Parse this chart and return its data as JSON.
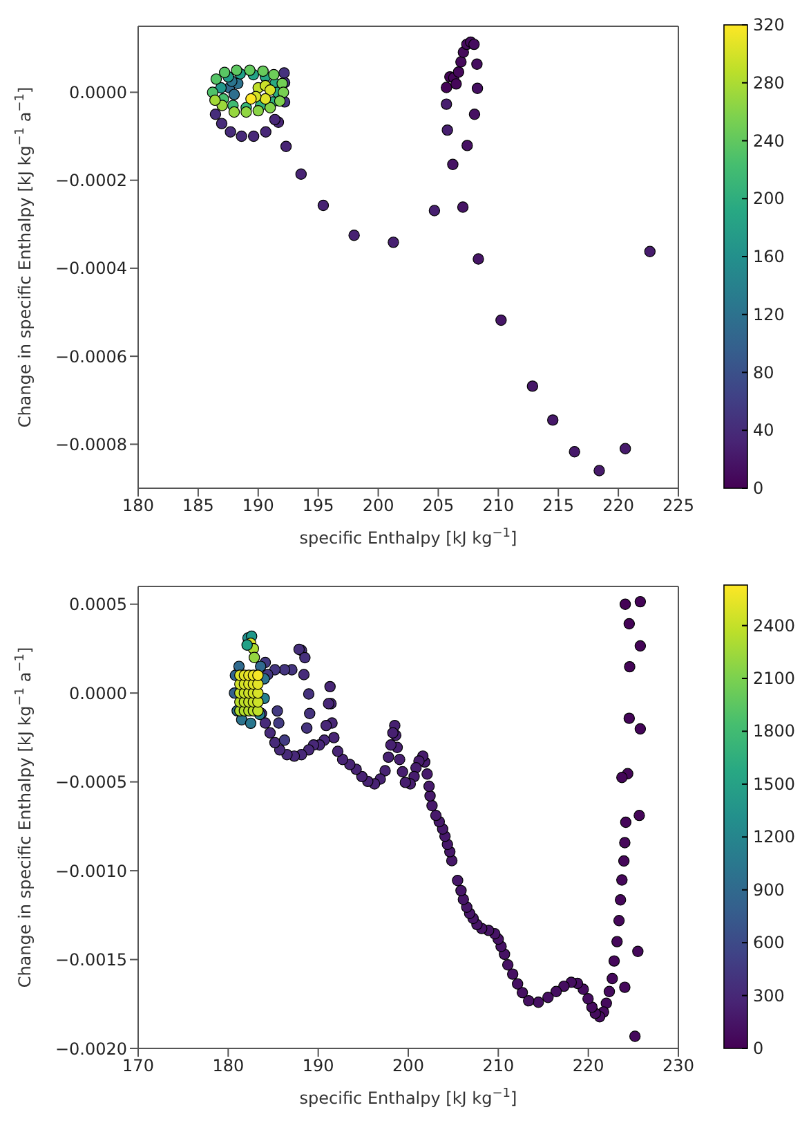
{
  "chart_data": [
    {
      "type": "scatter",
      "xlabel": "specific Enthalpy [kJ kg$^{−1}$]",
      "ylabel": "Change in specific Enthalpy [kJ kg$^{−1}$ a$^{−1}$]",
      "xlim": [
        180,
        225
      ],
      "xticks": [
        180,
        185,
        190,
        195,
        200,
        205,
        210,
        215,
        220,
        225
      ],
      "ylim": [
        -0.0009,
        0.00015
      ],
      "yticks": [
        {
          "value": -0.0008,
          "label": "−0.0008"
        },
        {
          "value": -0.0006,
          "label": "−0.0006"
        },
        {
          "value": -0.0004,
          "label": "−0.0004"
        },
        {
          "value": -0.0002,
          "label": "−0.0002"
        },
        {
          "value": 0,
          "label": "0.0000"
        }
      ],
      "clim": [
        0,
        320
      ],
      "cticks": [
        0,
        40,
        80,
        120,
        160,
        200,
        240,
        280,
        320
      ],
      "marker": "circle",
      "series": [
        {
          "x": [
            205.68,
            205.97,
            206.29,
            206.49,
            206.69,
            206.89,
            207.09,
            207.38,
            207.7,
            207.98,
            208.22,
            208.26,
            208.02,
            207.41,
            206.21,
            207.05,
            208.34,
            210.23,
            212.85,
            214.54,
            216.35,
            218.41,
            220.58,
            222.63,
            205.68,
            205.76,
            204.68,
            201.26,
            197.99,
            195.42,
            193.57,
            192.32,
            191.68,
            191.39,
            190.63,
            189.62,
            188.61,
            187.69,
            186.96,
            186.44,
            192.2,
            192.16,
            192.2,
            187.6,
            188.0,
            188.3,
            187.8,
            186.9,
            187.5,
            188.5,
            189.6,
            190.6,
            191.4,
            191.6,
            191.2,
            190.2,
            189.0,
            187.9,
            187.1,
            186.2,
            186.5,
            187.2,
            188.2,
            189.3,
            190.4,
            191.3,
            192.0,
            192.1,
            191.8,
            191.0,
            190.0,
            189.0,
            188.0,
            187.0,
            186.4,
            190.0,
            190.6,
            191.0,
            190.6,
            189.8,
            189.4
          ],
          "values": [
            1.1e-05,
            3.5e-05,
            3.3e-05,
            1.9e-05,
            4.6e-05,
            6.9e-05,
            9.1e-05,
            0.000109,
            0.000114,
            0.000109,
            6.4e-05,
            9e-06,
            -5e-05,
            -0.000121,
            -0.000164,
            -0.000261,
            -0.000379,
            -0.000518,
            -0.000668,
            -0.000745,
            -0.000817,
            -0.00086,
            -0.00081,
            -0.000362,
            -2.7e-05,
            -8.6e-05,
            -0.000269,
            -0.000341,
            -0.000325,
            -0.000257,
            -0.000186,
            -0.000123,
            -6.8e-05,
            -6.2e-05,
            -9e-05,
            -0.0001,
            -0.0001,
            -9e-05,
            -7.1e-05,
            -5e-05,
            2.2e-05,
            4.4e-05,
            -2.2e-05,
            1e-05,
            -5e-06,
            2e-05,
            2.5e-05,
            1e-05,
            3.5e-05,
            4.2e-05,
            4e-05,
            3.5e-05,
            2e-05,
            0,
            -2.2e-05,
            -3e-05,
            -3.5e-05,
            -3e-05,
            -1.5e-05,
            0,
            3e-05,
            4.5e-05,
            5e-05,
            5e-05,
            4.8e-05,
            4e-05,
            2e-05,
            0,
            -2e-05,
            -3.5e-05,
            -4.2e-05,
            -4.5e-05,
            -4.5e-05,
            -3e-05,
            -1.8e-05,
            1e-05,
            1.5e-05,
            5e-06,
            -1.5e-05,
            -1e-05,
            -1.5e-05
          ],
          "cvalues": [
            2,
            3,
            4,
            5,
            6,
            7,
            8,
            9,
            10,
            11,
            12,
            13,
            14,
            15,
            16,
            17,
            18,
            19,
            20,
            21,
            22,
            23,
            24,
            25,
            26,
            27,
            28,
            29,
            30,
            31,
            32,
            33,
            34,
            35,
            36,
            37,
            38,
            39,
            40,
            42,
            45,
            47,
            50,
            110,
            115,
            120,
            125,
            170,
            175,
            180,
            185,
            190,
            195,
            200,
            205,
            210,
            215,
            220,
            225,
            230,
            233,
            236,
            239,
            242,
            245,
            248,
            251,
            254,
            257,
            260,
            263,
            266,
            269,
            272,
            275,
            290,
            295,
            300,
            305,
            300,
            320
          ]
        }
      ]
    },
    {
      "type": "scatter",
      "xlabel": "specific Enthalpy [kJ kg$^{−1}$]",
      "ylabel": "Change in specific Enthalpy [kJ kg$^{−1}$ a$^{−1}$]",
      "xlim": [
        170,
        230
      ],
      "xticks": [
        170,
        180,
        190,
        200,
        210,
        220,
        230
      ],
      "ylim": [
        -0.002,
        0.0006
      ],
      "yticks": [
        {
          "value": -0.002,
          "label": "−0.0020"
        },
        {
          "value": -0.0015,
          "label": "−0.0015"
        },
        {
          "value": -0.001,
          "label": "−0.0010"
        },
        {
          "value": -0.0005,
          "label": "−0.0005"
        },
        {
          "value": 0,
          "label": "0.0000"
        },
        {
          "value": 0.0005,
          "label": "0.0005"
        }
      ],
      "clim": [
        0,
        2630
      ],
      "cticks": [
        0,
        300,
        600,
        900,
        1200,
        1500,
        1800,
        2100,
        2400
      ],
      "marker": "circle",
      "series": [
        {
          "x": [
            224.1,
            225.77,
            224.54,
            225.77,
            224.59,
            224.54,
            225.77,
            224.37,
            223.73,
            224.16,
            225.66,
            224.05,
            223.95,
            223.73,
            223.57,
            223.41,
            223.19,
            222.87,
            222.66,
            224.05,
            225.5,
            225.18,
            222.33,
            222.0,
            221.69,
            221.26,
            220.78,
            220.4,
            219.97,
            219.44,
            218.79,
            218.1,
            217.29,
            216.43,
            215.52,
            214.45,
            213.37,
            212.67,
            212.14,
            211.6,
            211.06,
            210.69,
            210.31,
            209.99,
            209.61,
            208.92,
            208.16,
            207.63,
            207.2,
            206.82,
            206.5,
            206.12,
            205.86,
            205.48,
            204.84,
            204.62,
            204.35,
            204.08,
            203.82,
            203.44,
            203.07,
            202.64,
            202.42,
            202.31,
            202.1,
            201.83,
            201.62,
            201.19,
            200.86,
            200.65,
            200.22,
            199.68,
            199.36,
            199.04,
            198.77,
            198.61,
            198.5,
            198.29,
            198.07,
            197.8,
            197.43,
            196.89,
            196.25,
            195.5,
            194.85,
            194.21,
            193.51,
            192.71,
            192.17,
            191.74,
            191.53,
            191.42,
            191.31,
            191.15,
            190.88,
            190.67,
            190.13,
            189.48,
            188.95,
            188.14,
            187.34,
            186.53,
            185.73,
            185.19,
            184.65,
            184.12,
            183.69,
            188.41,
            188.14,
            187.87,
            188.52,
            188.95,
            189.05,
            188.73,
            187.07,
            186.26,
            185.19,
            184.39,
            184.12,
            185.46,
            185.62,
            186.26,
            180.7,
            180.8,
            181.2,
            181.0,
            181.5,
            182.5,
            183.5,
            184.0,
            184.0,
            183.6,
            181.3,
            181.3,
            181.3,
            181.3,
            181.3,
            181.8,
            181.8,
            181.8,
            181.8,
            181.8,
            182.3,
            182.3,
            182.3,
            182.3,
            182.3,
            182.8,
            182.8,
            182.8,
            182.8,
            182.8,
            183.3,
            183.3,
            183.3,
            183.3,
            183.3,
            182.2,
            182.6,
            182.5,
            182.8,
            182.9,
            182.1
          ],
          "values": [
            0.0005,
            0.000514,
            0.00039,
            0.000265,
            0.000148,
            -0.000142,
            -0.000202,
            -0.000454,
            -0.000475,
            -0.000727,
            -0.000689,
            -0.000842,
            -0.000945,
            -0.001052,
            -0.001164,
            -0.001281,
            -0.001399,
            -0.001508,
            -0.001607,
            -0.001656,
            -0.001454,
            -0.001932,
            -0.00168,
            -0.001746,
            -0.001795,
            -0.001822,
            -0.001803,
            -0.001768,
            -0.001721,
            -0.001667,
            -0.001634,
            -0.001628,
            -0.00165,
            -0.00168,
            -0.001713,
            -0.00174,
            -0.001732,
            -0.001686,
            -0.001637,
            -0.001582,
            -0.00153,
            -0.00147,
            -0.001426,
            -0.001385,
            -0.001355,
            -0.001336,
            -0.001325,
            -0.001303,
            -0.001268,
            -0.00124,
            -0.001205,
            -0.001161,
            -0.001112,
            -0.001055,
            -0.000943,
            -0.000893,
            -0.000852,
            -0.000806,
            -0.000765,
            -0.000724,
            -0.000689,
            -0.000634,
            -0.000579,
            -0.000525,
            -0.000456,
            -0.000388,
            -0.000355,
            -0.000383,
            -0.000421,
            -0.00047,
            -0.000511,
            -0.000503,
            -0.000443,
            -0.000374,
            -0.000306,
            -0.000238,
            -0.000183,
            -0.000224,
            -0.000292,
            -0.000361,
            -0.000437,
            -0.000484,
            -0.000511,
            -0.000497,
            -0.00047,
            -0.000429,
            -0.000402,
            -0.000374,
            -0.000328,
            -0.000251,
            -0.000169,
            -6e-05,
            3.6e-05,
            -6e-05,
            -0.000183,
            -0.000265,
            -0.000292,
            -0.000292,
            -0.00032,
            -0.000347,
            -0.000355,
            -0.000347,
            -0.00032,
            -0.000279,
            -0.000224,
            -0.000169,
            -0.000115,
            0.000104,
            0.00024,
            0.000246,
            0.000199,
            -5e-06,
            -0.000115,
            -0.000197,
            0.000131,
            0.000131,
            0.000131,
            0.000104,
            0.000172,
            -0.000101,
            -0.000169,
            -0.000265,
            0,
            0.0001,
            0.00015,
            -0.0001,
            -0.00015,
            -0.00017,
            -0.00012,
            -3e-05,
            8e-05,
            0.00015,
            -0.0001,
            -5e-05,
            0,
            5e-05,
            0.0001,
            -0.0001,
            -5e-05,
            0,
            5e-05,
            0.0001,
            -0.0001,
            -5e-05,
            0,
            5e-05,
            0.0001,
            -0.0001,
            -5e-05,
            0,
            5e-05,
            0.0001,
            -0.0001,
            -5e-05,
            0,
            5e-05,
            0.0001,
            0.00031,
            0.00032,
            0.00028,
            0.00025,
            0.0002,
            0.00027
          ],
          "cvalues": [
            20,
            22,
            24,
            26,
            28,
            30,
            32,
            34,
            36,
            38,
            40,
            42,
            44,
            46,
            48,
            50,
            52,
            54,
            56,
            58,
            60,
            62,
            70,
            73,
            76,
            79,
            82,
            85,
            88,
            91,
            94,
            97,
            100,
            103,
            106,
            109,
            112,
            115,
            118,
            121,
            124,
            127,
            130,
            133,
            136,
            139,
            142,
            145,
            148,
            151,
            154,
            157,
            160,
            163,
            166,
            169,
            172,
            175,
            178,
            181,
            184,
            187,
            190,
            193,
            196,
            199,
            202,
            205,
            208,
            211,
            214,
            217,
            220,
            223,
            226,
            229,
            232,
            235,
            238,
            241,
            244,
            247,
            250,
            253,
            256,
            259,
            262,
            265,
            268,
            271,
            274,
            277,
            280,
            283,
            286,
            289,
            292,
            295,
            298,
            301,
            304,
            307,
            310,
            313,
            316,
            319,
            322,
            330,
            340,
            350,
            360,
            370,
            380,
            390,
            400,
            410,
            420,
            430,
            440,
            450,
            460,
            470,
            800,
            850,
            900,
            950,
            1000,
            1050,
            1100,
            1150,
            1000,
            900,
            2300,
            2350,
            2400,
            2450,
            2500,
            2320,
            2370,
            2420,
            2470,
            2520,
            2340,
            2390,
            2440,
            2490,
            2540,
            2360,
            2410,
            2460,
            2510,
            2560,
            2380,
            2430,
            2480,
            2530,
            2600,
            1300,
            1400,
            2500,
            2300,
            2200,
            1500
          ]
        }
      ]
    }
  ]
}
